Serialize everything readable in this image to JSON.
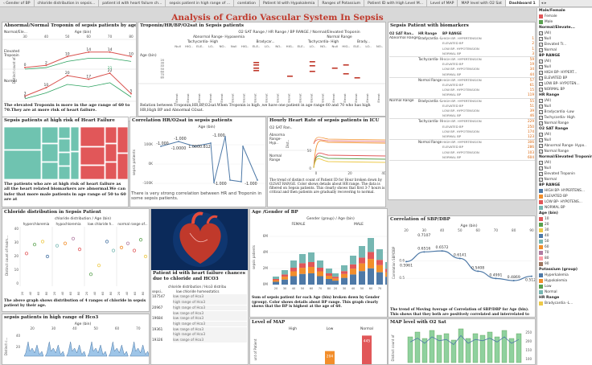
{
  "tabs": [
    "‹ Gender of BP",
    "chloride distribution in sepsis...",
    "patient id with heart failure ch...",
    "sepsis patient in high range of ...",
    "corelation",
    "Patient Id with Hypokalemia",
    "Ranges of Potassium",
    "Patient ID with High Level M...",
    "Level of MAP",
    "MAP level with O2 Sat",
    "Dashboard 1"
  ],
  "title": "Analysis of Cardio Vascular System In Sepsis Patients",
  "p1": {
    "title": "Abnormal/Normal Troponin of sepsis patients by age",
    "header": "Normal/Ele...",
    "axis_title": "Age (bin)",
    "ylabel": "Distinct count of...",
    "rows": [
      "Elevated Troponin",
      "Normal"
    ],
    "ages": [
      "30",
      "40",
      "50",
      "60",
      "70",
      "80"
    ],
    "elevated": [
      0,
      2,
      10,
      14,
      14,
      10
    ],
    "elevated_labels": [
      "0",
      "2",
      "10",
      "14",
      "14",
      "10"
    ],
    "elevated_top": [
      "",
      "",
      "",
      "",
      "21",
      ""
    ],
    "normal": [
      3,
      10,
      20,
      17,
      22,
      5
    ],
    "normal_labels": [
      "3",
      "10",
      "20",
      "17",
      "22",
      "5"
    ],
    "normal_low": [
      "1",
      "",
      "",
      "",
      "",
      ""
    ],
    "colors": {
      "a": "#d9534f",
      "b": "#2ca25f",
      "c": "#555555"
    },
    "note": "The elevated Troponin is more in the age range of 60 to 70.They are at more risk of heart failure."
  },
  "p2": {
    "title": "Troponin/HR/BP/O2sat in Sepsis patients",
    "header1": "O2 SAT Range / HR Range / BP RANGE / Normal/Elevated Troponin",
    "group_a": "Abnormal Range- Hypoxemia",
    "sub_a": [
      "Tachycardia- High",
      "Bradycar..."
    ],
    "group_b": "Normal Range",
    "sub_b": [
      "Tachycardia- High",
      "Brady..."
    ],
    "rowhdr": "Age (bin)",
    "cols": [
      "Null",
      "HIG..",
      "ELE..",
      "LO..",
      "NO..",
      "Null",
      "HIG..",
      "ELE..",
      "LO..",
      "NO..",
      "HIG..",
      "ELE..",
      "LO..",
      "NO..",
      "Null",
      "HIG..",
      "ELE..",
      "LO..",
      "NO.."
    ],
    "ages": [
      "20",
      "30",
      "40",
      "50",
      "60",
      "70",
      "80"
    ],
    "colh": "Elevat",
    "note": "Relation between Troponin,HR,BP,O2sat.When Troponin is high ,we have one patient in age range 60 and 70 who has high HR,High BP and Abnormal O2sat."
  },
  "p3": {
    "title": "Sepsis Patient with biomarkers",
    "h1": "O2 SAT Ran..",
    "h2": "HR Range",
    "h3": "BP RANGE",
    "groups": [
      {
        "o2": "Abnormal Range- Hypoxemia",
        "hr": "Bradycardia -Low",
        "bp": [
          "HIGH BP- HYPERTENSION",
          "ELEVATED BP",
          "LOW BP- HYPOTENSION",
          "NORMAL BP"
        ],
        "v": [
          "1",
          "2",
          "1",
          "3"
        ]
      },
      {
        "o2": "",
        "hr": "Tachycardia- High",
        "bp": [
          "HIGH BP- HYPERTENSION",
          "ELEVATED BP",
          "LOW BP- HYPOTENSION",
          "NORMAL BP"
        ],
        "v": [
          "59",
          "19",
          "34",
          "44"
        ]
      },
      {
        "o2": "",
        "hr": "Normal Range",
        "bp": [
          "HIGH BP- HYPERTENSION",
          "ELEVATED BP",
          "LOW BP- HYPOTENSION",
          "NORMAL BP"
        ],
        "v": [
          "57",
          "61",
          "15",
          "119"
        ]
      },
      {
        "o2": "Normal Range",
        "hr": "Bradycardia -Low",
        "bp": [
          "HIGH BP- HYPERTENSION",
          "ELEVATED BP",
          "LOW BP- HYPOTENSION",
          "NORMAL BP"
        ],
        "v": [
          "55",
          "51",
          "39",
          "46"
        ]
      },
      {
        "o2": "",
        "hr": "Tachycardia- High",
        "bp": [
          "HIGH BP- HYPERTENSION",
          "ELEVATED BP",
          "LOW BP- HYPOTENSION",
          "NORMAL BP"
        ],
        "v": [
          "229",
          "250",
          "174",
          "123"
        ]
      },
      {
        "o2": "",
        "hr": "Normal Range",
        "bp": [
          "HIGH BP- HYPERTENSION",
          "ELEVATED BP",
          "LOW BP- HYPOTENSION",
          "NORMAL BP"
        ],
        "v": [
          "306",
          "286",
          "103",
          "604"
        ]
      }
    ]
  },
  "p4": {
    "title": "Sepsis patients at high risk  of Heart Failure",
    "note": "The patients who are at high risk of heart failure as all the heart related biomarkers are abnormal.We can infer that more male patients in age range of 50 to 60 are at"
  },
  "p5": {
    "title": "Correlation HR/O2sat in sepsis patients",
    "axis_title": "Age (bin)",
    "ylabel": "sepsis patients",
    "yticks": [
      "100K",
      "0K",
      "-100K"
    ],
    "labels": [
      "-1.000",
      "-1.000",
      "-1.0000",
      "1.0000.812",
      "-1.000",
      "-1.000",
      "-1.000"
    ],
    "note": "There is very strong correlation between HR and Troponin in some sepsis patients."
  },
  "p6": {
    "title": "Hourly Heart Rate of sepsis patients in ICU",
    "rowhdr": "O2 SAT Ran..",
    "rows": [
      "Abnorma Range- Hyp..",
      "Normal Range"
    ],
    "ylabel": "Dist..",
    "yticks": [
      "50",
      "0"
    ],
    "xticks": [
      "0",
      "20",
      "40"
    ],
    "xlabel": "Hour",
    "note": "The trend of distinct count of Patient ID for Hour broken down by O2SAT RANGE.  Color shows details about HR range. The data is filtered on Sepsis patients. This clearly shows that first 3-7 hours is critical and then patients are gradually recovering to normal."
  },
  "p7": {
    "title": "Chloride distribution in Sepsis Patient",
    "header": "chloride distribution / Age (bin)",
    "cols": [
      "hyperchloremia",
      "hypochloremia",
      "low chloride h..",
      "normal range of..."
    ],
    "ylabel": "Distinct count of Hadm...",
    "yticks": [
      "40",
      "30",
      "20",
      "10",
      "0"
    ],
    "ages": [
      "20",
      "40",
      "60",
      "80"
    ],
    "note": "The above graph shows  distribution of 4 ranges of chloride in sepsis patient  by their age."
  },
  "p8": {
    "title": "Patient id with heart failure chances due to chloride and HCO3",
    "header": "chloride distribution / Hco3 distribu",
    "subheader": "low chloride homeostatics",
    "rowhdr": "sepsi..",
    "rows": [
      {
        "id": "107547",
        "v": [
          "low range of Hco3",
          "high range of Hco3"
        ]
      },
      {
        "id": "20967",
        "v": [
          "high range of Hco3",
          "low range of Hco3"
        ]
      },
      {
        "id": "19684",
        "v": [
          "low range of Hco3",
          "high range of Hco3"
        ]
      },
      {
        "id": "19361",
        "v": [
          "low range of Hco3",
          "high range of Hco3"
        ]
      },
      {
        "id": "19326",
        "v": [
          "low range of Hco3",
          ""
        ]
      }
    ],
    "sidelabels": [
      "low chloride homeostatics",
      "low chloride homeostatics",
      "low chloride homeostatics"
    ]
  },
  "p9": {
    "title": "Age /Gender of BP",
    "header": "Gender (group) / Age (bin)",
    "groups": [
      "FEMALE",
      "MALE"
    ],
    "ylabel": "sepsis patients",
    "yticks": [
      "6M",
      "4M",
      "2M",
      "0M"
    ],
    "ages": [
      "20",
      "30",
      "40",
      "50",
      "60",
      "70",
      "80",
      "20",
      "30",
      "40",
      "50",
      "60",
      "70",
      "80"
    ],
    "note": "Sum of sepsis patient for each Age (bin) broken down by Gender (group).  Color shows details about BP range.  This graph clearly shows that the BP is highest at the age of 60."
  },
  "p10": {
    "title": "Correlation of SBP/DBP",
    "axis_title": "Age (bin)",
    "ylabel": "Correlation SBP/DBP",
    "yticks": [
      "0.6",
      "0.5"
    ],
    "ages": [
      "20",
      "30",
      "40",
      "50",
      "60",
      "70",
      "80",
      "90"
    ],
    "values": [
      0.5961,
      0.6516,
      0.6572,
      0.6141,
      0.5408,
      0.4991,
      0.4869,
      0.512
    ],
    "vlabels": [
      "0.5961",
      "0.6516",
      "0.6572",
      "0.6141",
      "0.5408",
      "0.4991",
      "0.4869",
      "0.5120"
    ],
    "top_label": "0.7107",
    "note": "The trend of Moving Average of Correlation of SBP/DBP for Age (bin). This shows that they both are positively correlated and interrelated to each"
  },
  "p11": {
    "title": "sepsis patients in high range of Hco3",
    "axis_title": "Age (bin)",
    "ages": [
      "20",
      "30",
      "40",
      "50",
      "60",
      "70"
    ],
    "ylabel": "Distinct c...",
    "yticks": [
      "40",
      "20"
    ]
  },
  "p12": {
    "title": "Level of MAP",
    "cats": [
      "High",
      "Low",
      "Normal"
    ],
    "values": [
      0,
      204,
      445
    ],
    "vlabels": [
      "",
      "204",
      "445"
    ],
    "ylabel": "unt of Patient"
  },
  "p13": {
    "title": "MAP level with O2 Sat",
    "ylabel": "Distinct count of",
    "yticks": [
      "250",
      "200",
      "150",
      "100"
    ]
  },
  "legend": {
    "gender_title": "Male/Female",
    "gender": [
      {
        "label": "Female",
        "color": "#e15759"
      },
      {
        "label": "Male",
        "color": "#59a14f"
      }
    ],
    "trop_title": "Normal/Elevate...",
    "trop": [
      "(All)",
      "Null",
      "Elevated Tr...",
      "Normal"
    ],
    "bp_title": "BP RANGE",
    "bp": [
      "(All)",
      "Null",
      "HIGH BP- HYPERT...",
      "ELEVATED BP",
      "LOW BP- HYPOTEN...",
      "NORMAL BP"
    ],
    "hr_title": "HR Range",
    "hr": [
      "(All)",
      "Null",
      "Bradycardia -Low",
      "Tachycardia- High",
      "Normal Range"
    ],
    "o2_title": "O2 SAT Range",
    "o2": [
      "(All)",
      "Null",
      "Abnormal Range- Hypo..",
      "Normal Range"
    ],
    "trop2_title": "Normal/Elevated Troponin",
    "trop2": [
      "(All)",
      "Null",
      "Elevated Troponin",
      "Normal"
    ],
    "bpc_title": "BP RANGE",
    "bpc": [
      {
        "label": "HIGH BP- HYPERTENS...",
        "color": "#4e79a7"
      },
      {
        "label": "ELEVATED BP",
        "color": "#f28e2b"
      },
      {
        "label": "LOW BP- HYPOTENS...",
        "color": "#e15759"
      },
      {
        "label": "NORMAL BP",
        "color": "#76b7b2"
      }
    ],
    "age_title": "Age (bin)",
    "ages": [
      {
        "label": "10",
        "color": "#e15759"
      },
      {
        "label": "20",
        "color": "#59a14f"
      },
      {
        "label": "30",
        "color": "#edc948"
      },
      {
        "label": "40",
        "color": "#4e79a7"
      },
      {
        "label": "50",
        "color": "#76b7b2"
      },
      {
        "label": "60",
        "color": "#f28e2b"
      },
      {
        "label": "70",
        "color": "#b07aa1"
      },
      {
        "label": "80",
        "color": "#ff9da7"
      },
      {
        "label": "90",
        "color": "#9c755f"
      }
    ],
    "pot_title": "Potassium (group)",
    "pot": [
      {
        "label": "Hyperkalemia",
        "color": "#4e79a7"
      },
      {
        "label": "Hypokalemia",
        "color": "#f28e2b"
      },
      {
        "label": "Low",
        "color": "#59a14f"
      },
      {
        "label": "Normal",
        "color": "#76b7b2"
      }
    ],
    "hr2_title": "HR Range",
    "hr2": [
      {
        "label": "Bradycardia -L...",
        "color": "#edc948"
      }
    ]
  }
}
